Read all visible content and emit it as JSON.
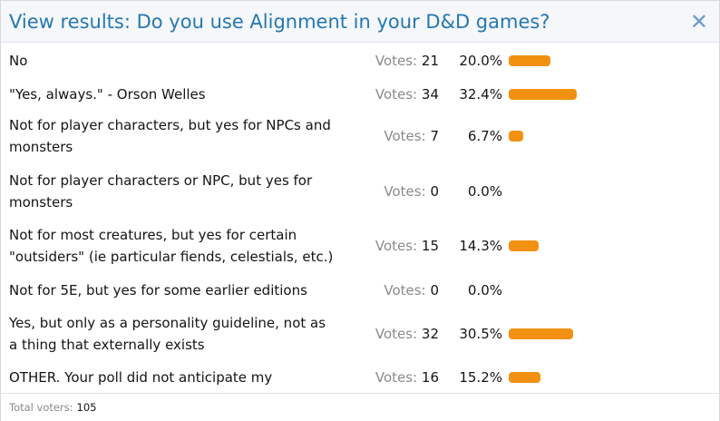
{
  "dialog": {
    "title": "View results: Do you use Alignment in your D&D games?",
    "close_icon": "close-icon"
  },
  "results": [
    {
      "option": "No",
      "votes_label": "Votes:",
      "votes": 21,
      "percent": "20.0%",
      "fraction": 0.2
    },
    {
      "option": "\"Yes, always.\" - Orson Welles",
      "votes_label": "Votes:",
      "votes": 34,
      "percent": "32.4%",
      "fraction": 0.324
    },
    {
      "option": "Not for player characters, but yes for NPCs and monsters",
      "votes_label": "Votes:",
      "votes": 7,
      "percent": "6.7%",
      "fraction": 0.067
    },
    {
      "option": "Not for player characters or NPC, but yes for monsters",
      "votes_label": "Votes:",
      "votes": 0,
      "percent": "0.0%",
      "fraction": 0.0
    },
    {
      "option": "Not for most creatures, but yes for certain \"outsiders\" (ie particular fiends, celestials, etc.)",
      "votes_label": "Votes:",
      "votes": 15,
      "percent": "14.3%",
      "fraction": 0.143
    },
    {
      "option": "Not for 5E, but yes for some earlier editions",
      "votes_label": "Votes:",
      "votes": 0,
      "percent": "0.0%",
      "fraction": 0.0
    },
    {
      "option": "Yes, but only as a personality guideline, not as a thing that externally exists",
      "votes_label": "Votes:",
      "votes": 32,
      "percent": "30.5%",
      "fraction": 0.305
    },
    {
      "option": "OTHER. Your poll did not anticipate my NUANCE.",
      "votes_label": "Votes:",
      "votes": 16,
      "percent": "15.2%",
      "fraction": 0.152
    }
  ],
  "footer": {
    "total_label": "Total voters:",
    "total_value": "105"
  },
  "colors": {
    "bar": "#f29111",
    "title": "#2577b1",
    "close": "#6b9ccf"
  }
}
